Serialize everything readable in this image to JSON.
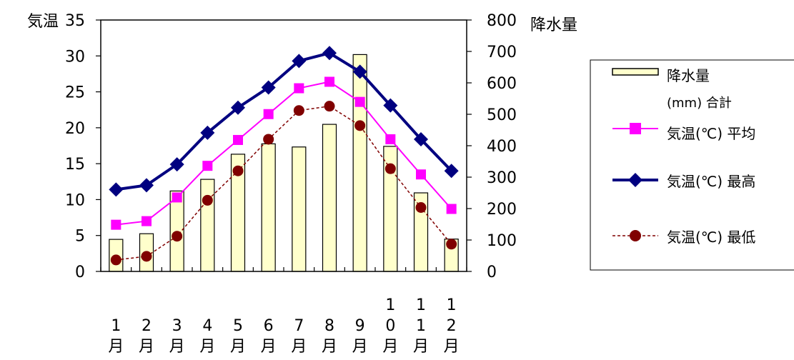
{
  "chart_data": {
    "type": "bar",
    "y_left_label": "気温",
    "y_right_label": "降水量",
    "y_left_ticks": [
      "0",
      "5",
      "10",
      "15",
      "20",
      "25",
      "30",
      "35"
    ],
    "y_right_ticks": [
      "0",
      "100",
      "200",
      "300",
      "400",
      "500",
      "600",
      "700",
      "800"
    ],
    "y_left_range": [
      0,
      35
    ],
    "y_right_range": [
      0,
      800
    ],
    "categories": [
      "1月",
      "2月",
      "3月",
      "4月",
      "5月",
      "6月",
      "7月",
      "8月",
      "9月",
      "10月",
      "11月",
      "12月"
    ],
    "grid": false,
    "legend_position": "right",
    "bar_series": {
      "name": "降水量(mm) 合計",
      "axis": "right",
      "color": "#ffffcc",
      "values": [
        102,
        120,
        256,
        293,
        373,
        406,
        396,
        468,
        690,
        398,
        250,
        103
      ]
    },
    "line_series": [
      {
        "name": "気温(℃) 平均",
        "axis": "left",
        "color": "#ff00ff",
        "marker": "square",
        "dash": false,
        "values": [
          6.5,
          7.0,
          10.3,
          14.7,
          18.3,
          21.9,
          25.5,
          26.4,
          23.6,
          18.4,
          13.5,
          8.7
        ]
      },
      {
        "name": "気温(℃) 最高",
        "axis": "left",
        "color": "#000080",
        "marker": "diamond",
        "dash": false,
        "values": [
          11.4,
          12.0,
          14.9,
          19.3,
          22.8,
          25.6,
          29.3,
          30.4,
          27.8,
          23.1,
          18.4,
          14.0
        ]
      },
      {
        "name": "気温(℃) 最低",
        "axis": "left",
        "color": "#800000",
        "marker": "circle",
        "dash": true,
        "values": [
          1.6,
          2.1,
          4.9,
          9.9,
          14.0,
          18.4,
          22.4,
          23.0,
          20.3,
          14.3,
          8.9,
          3.8
        ]
      }
    ],
    "legend": {
      "bar_line1": "降水量",
      "bar_line2": "(mm) 合計",
      "avg": "気温(℃) 平均",
      "max": "気温(℃) 最高",
      "min": "気温(℃) 最低"
    }
  }
}
